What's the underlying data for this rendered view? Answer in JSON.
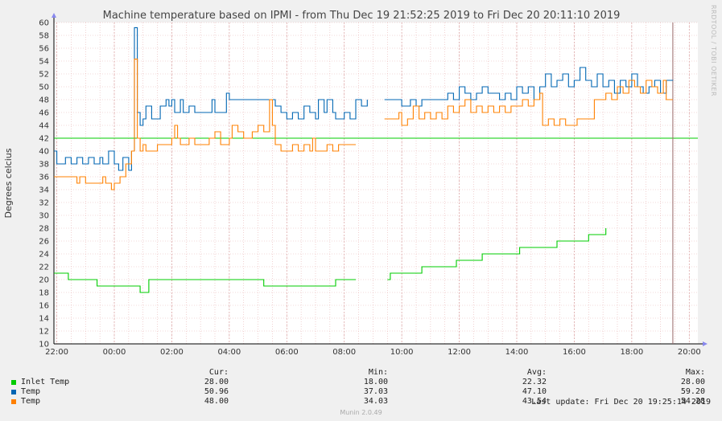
{
  "chart_data": {
    "type": "line",
    "title": "Machine temperature based on IPMI - from Thu Dec 19 21:52:25 2019 to Fri Dec 20 20:11:10 2019",
    "ylabel": "Degrees celcius",
    "ylim": [
      10,
      60
    ],
    "yticks": [
      10,
      12,
      14,
      16,
      18,
      20,
      22,
      24,
      26,
      28,
      30,
      32,
      34,
      36,
      38,
      40,
      42,
      44,
      46,
      48,
      50,
      52,
      54,
      56,
      58,
      60
    ],
    "xlim_hours": [
      21.9,
      44.3
    ],
    "xticks": [
      {
        "label": "22:00",
        "h": 22
      },
      {
        "label": "00:00",
        "h": 24
      },
      {
        "label": "02:00",
        "h": 26
      },
      {
        "label": "04:00",
        "h": 28
      },
      {
        "label": "06:00",
        "h": 30
      },
      {
        "label": "08:00",
        "h": 32
      },
      {
        "label": "10:00",
        "h": 34
      },
      {
        "label": "12:00",
        "h": 36
      },
      {
        "label": "14:00",
        "h": 38
      },
      {
        "label": "16:00",
        "h": 40
      },
      {
        "label": "18:00",
        "h": 42
      },
      {
        "label": "20:00",
        "h": 44
      }
    ],
    "threshold": {
      "value": 42,
      "color": "#00cc00"
    },
    "now_marker_h": 43.43,
    "series": [
      {
        "name": "Inlet Temp",
        "color": "#00cc00",
        "points": [
          [
            21.9,
            21
          ],
          [
            22.4,
            21
          ],
          [
            22.4,
            20
          ],
          [
            23.4,
            20
          ],
          [
            23.4,
            19
          ],
          [
            24.9,
            19
          ],
          [
            24.9,
            18
          ],
          [
            25.2,
            18
          ],
          [
            25.2,
            20
          ],
          [
            29.2,
            20
          ],
          [
            29.2,
            19
          ],
          [
            31.7,
            19
          ],
          [
            31.7,
            20
          ],
          [
            32.4,
            20
          ],
          [
            33.1,
            null
          ],
          [
            33.5,
            20
          ],
          [
            33.6,
            21
          ],
          [
            34.7,
            21
          ],
          [
            34.7,
            22
          ],
          [
            35.9,
            22
          ],
          [
            35.9,
            23
          ],
          [
            36.8,
            23
          ],
          [
            36.8,
            24
          ],
          [
            38.1,
            24
          ],
          [
            38.1,
            25
          ],
          [
            39.4,
            25
          ],
          [
            39.4,
            26
          ],
          [
            40.5,
            26
          ],
          [
            40.5,
            27
          ],
          [
            41.1,
            27
          ],
          [
            41.1,
            28
          ]
        ]
      },
      {
        "name": "Temp",
        "color": "#0066b3",
        "points": [
          [
            21.9,
            40
          ],
          [
            22.0,
            38
          ],
          [
            22.3,
            39
          ],
          [
            22.5,
            38
          ],
          [
            22.7,
            39
          ],
          [
            22.9,
            38
          ],
          [
            23.1,
            39
          ],
          [
            23.3,
            38
          ],
          [
            23.5,
            39
          ],
          [
            23.6,
            38
          ],
          [
            23.8,
            40
          ],
          [
            24.0,
            38
          ],
          [
            24.15,
            37
          ],
          [
            24.3,
            39
          ],
          [
            24.5,
            37
          ],
          [
            24.6,
            40
          ],
          [
            24.7,
            59.2
          ],
          [
            24.8,
            46
          ],
          [
            24.9,
            44
          ],
          [
            25.0,
            45
          ],
          [
            25.1,
            47
          ],
          [
            25.3,
            45
          ],
          [
            25.6,
            47
          ],
          [
            25.8,
            48
          ],
          [
            25.9,
            47
          ],
          [
            26.0,
            48
          ],
          [
            26.1,
            46
          ],
          [
            26.3,
            48
          ],
          [
            26.4,
            46
          ],
          [
            26.6,
            47
          ],
          [
            26.8,
            46
          ],
          [
            27.2,
            46
          ],
          [
            27.4,
            48
          ],
          [
            27.5,
            46
          ],
          [
            27.7,
            46
          ],
          [
            27.9,
            49
          ],
          [
            28.0,
            48
          ],
          [
            29.5,
            48
          ],
          [
            29.6,
            47
          ],
          [
            29.8,
            46
          ],
          [
            30.0,
            45
          ],
          [
            30.2,
            46
          ],
          [
            30.4,
            45
          ],
          [
            30.6,
            47
          ],
          [
            30.8,
            46
          ],
          [
            31.0,
            45
          ],
          [
            31.1,
            48
          ],
          [
            31.3,
            46
          ],
          [
            31.4,
            48
          ],
          [
            31.6,
            46
          ],
          [
            31.7,
            45
          ],
          [
            32.0,
            46
          ],
          [
            32.2,
            45
          ],
          [
            32.4,
            48
          ],
          [
            32.6,
            47
          ],
          [
            32.8,
            48
          ],
          [
            33.0,
            null
          ],
          [
            33.4,
            48
          ],
          [
            33.6,
            48
          ],
          [
            33.9,
            48
          ],
          [
            34.0,
            47
          ],
          [
            34.3,
            48
          ],
          [
            34.5,
            47
          ],
          [
            34.7,
            48
          ],
          [
            35.0,
            48
          ],
          [
            35.4,
            48
          ],
          [
            35.6,
            49
          ],
          [
            35.8,
            48
          ],
          [
            36.0,
            50
          ],
          [
            36.2,
            49
          ],
          [
            36.4,
            48
          ],
          [
            36.6,
            49
          ],
          [
            36.8,
            50
          ],
          [
            37.0,
            49
          ],
          [
            37.2,
            49
          ],
          [
            37.4,
            48
          ],
          [
            37.6,
            49
          ],
          [
            37.8,
            48
          ],
          [
            38.0,
            50
          ],
          [
            38.2,
            49
          ],
          [
            38.4,
            50
          ],
          [
            38.6,
            48
          ],
          [
            38.8,
            50
          ],
          [
            39.0,
            52
          ],
          [
            39.2,
            50
          ],
          [
            39.4,
            51
          ],
          [
            39.6,
            52
          ],
          [
            39.8,
            50
          ],
          [
            40.0,
            51
          ],
          [
            40.2,
            53
          ],
          [
            40.4,
            51
          ],
          [
            40.6,
            50
          ],
          [
            40.8,
            52
          ],
          [
            41.0,
            50
          ],
          [
            41.2,
            51
          ],
          [
            41.4,
            49
          ],
          [
            41.6,
            51
          ],
          [
            41.8,
            50
          ],
          [
            42.0,
            52
          ],
          [
            42.2,
            50
          ],
          [
            42.4,
            49
          ],
          [
            42.6,
            50
          ],
          [
            42.8,
            51
          ],
          [
            43.0,
            49
          ],
          [
            43.2,
            51
          ],
          [
            43.43,
            50.96
          ]
        ]
      },
      {
        "name": "Temp",
        "color": "#ff8000",
        "points": [
          [
            21.9,
            36
          ],
          [
            22.6,
            36
          ],
          [
            22.7,
            35
          ],
          [
            22.8,
            36
          ],
          [
            22.9,
            36
          ],
          [
            23.0,
            35
          ],
          [
            23.5,
            35
          ],
          [
            23.6,
            36
          ],
          [
            23.7,
            35
          ],
          [
            23.8,
            35
          ],
          [
            23.9,
            34
          ],
          [
            24.0,
            35
          ],
          [
            24.2,
            36
          ],
          [
            24.4,
            38
          ],
          [
            24.6,
            40
          ],
          [
            24.7,
            54.3
          ],
          [
            24.8,
            42
          ],
          [
            24.9,
            40
          ],
          [
            25.0,
            41
          ],
          [
            25.1,
            40
          ],
          [
            25.4,
            40
          ],
          [
            25.5,
            41
          ],
          [
            25.8,
            41
          ],
          [
            26.0,
            42
          ],
          [
            26.1,
            44
          ],
          [
            26.2,
            42
          ],
          [
            26.3,
            41
          ],
          [
            26.6,
            42
          ],
          [
            26.8,
            41
          ],
          [
            27.0,
            41
          ],
          [
            27.3,
            42
          ],
          [
            27.5,
            43
          ],
          [
            27.7,
            41
          ],
          [
            28.0,
            42
          ],
          [
            28.1,
            44
          ],
          [
            28.3,
            43
          ],
          [
            28.5,
            42
          ],
          [
            28.8,
            43
          ],
          [
            29.0,
            44
          ],
          [
            29.2,
            43
          ],
          [
            29.4,
            48
          ],
          [
            29.5,
            44
          ],
          [
            29.6,
            41
          ],
          [
            29.8,
            40
          ],
          [
            30.0,
            40
          ],
          [
            30.2,
            41
          ],
          [
            30.4,
            40
          ],
          [
            30.6,
            41
          ],
          [
            30.8,
            40
          ],
          [
            30.9,
            42
          ],
          [
            31.0,
            40
          ],
          [
            31.2,
            40
          ],
          [
            31.4,
            41
          ],
          [
            31.6,
            40
          ],
          [
            31.8,
            41
          ],
          [
            32.0,
            41
          ],
          [
            32.4,
            41
          ],
          [
            33.0,
            null
          ],
          [
            33.4,
            45
          ],
          [
            33.8,
            45
          ],
          [
            33.9,
            46
          ],
          [
            34.0,
            44
          ],
          [
            34.2,
            45
          ],
          [
            34.4,
            47
          ],
          [
            34.6,
            45
          ],
          [
            34.8,
            46
          ],
          [
            35.0,
            45
          ],
          [
            35.2,
            46
          ],
          [
            35.4,
            45
          ],
          [
            35.6,
            47
          ],
          [
            35.8,
            46
          ],
          [
            36.0,
            47
          ],
          [
            36.2,
            48
          ],
          [
            36.4,
            46
          ],
          [
            36.6,
            47
          ],
          [
            36.8,
            46
          ],
          [
            37.0,
            47
          ],
          [
            37.2,
            46
          ],
          [
            37.4,
            47
          ],
          [
            37.6,
            46
          ],
          [
            37.8,
            47
          ],
          [
            38.0,
            47
          ],
          [
            38.2,
            48
          ],
          [
            38.4,
            47
          ],
          [
            38.6,
            48
          ],
          [
            38.8,
            49
          ],
          [
            38.9,
            44
          ],
          [
            39.1,
            45
          ],
          [
            39.3,
            44
          ],
          [
            39.5,
            45
          ],
          [
            39.7,
            44
          ],
          [
            40.1,
            45
          ],
          [
            40.6,
            45
          ],
          [
            40.7,
            48
          ],
          [
            41.1,
            49
          ],
          [
            41.3,
            48
          ],
          [
            41.5,
            50
          ],
          [
            41.7,
            49
          ],
          [
            41.9,
            51
          ],
          [
            42.1,
            50
          ],
          [
            42.3,
            49
          ],
          [
            42.5,
            51
          ],
          [
            42.7,
            50
          ],
          [
            42.9,
            49
          ],
          [
            43.1,
            51
          ],
          [
            43.2,
            48
          ],
          [
            43.43,
            48
          ]
        ]
      }
    ]
  },
  "sidebar_text": "RRDTOOL / TOBI OETIKER",
  "legend": {
    "headers": {
      "cur": "Cur:",
      "min": "Min:",
      "avg": "Avg:",
      "max": "Max:"
    },
    "rows": [
      {
        "name": "Inlet Temp",
        "color": "#00cc00",
        "cur": "28.00",
        "min": "18.00",
        "avg": "22.32",
        "max": "28.00"
      },
      {
        "name": "Temp",
        "color": "#0066b3",
        "cur": "50.96",
        "min": "37.03",
        "avg": "47.10",
        "max": "59.20"
      },
      {
        "name": "Temp",
        "color": "#ff8000",
        "cur": "48.00",
        "min": "34.03",
        "avg": "43.54",
        "max": "54.28"
      }
    ]
  },
  "last_update": "Last update: Fri Dec 20 19:25:14 2019",
  "footer": "Munin 2.0.49"
}
